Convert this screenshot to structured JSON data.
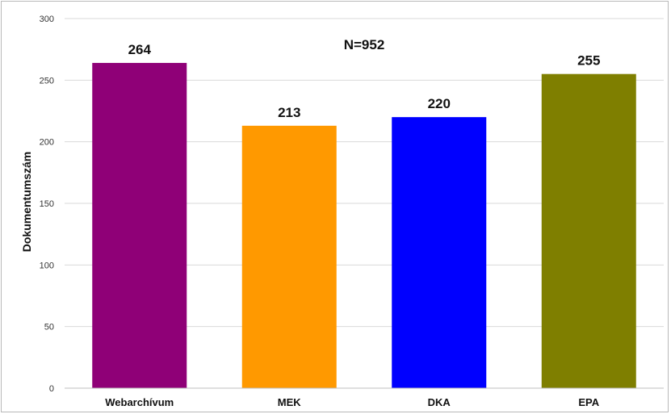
{
  "chart_data": {
    "type": "bar",
    "categories": [
      "Webarchívum",
      "MEK",
      "DKA",
      "EPA"
    ],
    "values": [
      264,
      213,
      220,
      255
    ],
    "value_labels": [
      "264",
      "213",
      "220",
      "255"
    ],
    "colors": [
      "#8f0077",
      "#ff9900",
      "#0000ff",
      "#7f7f00"
    ],
    "annotation": "N=952",
    "ylabel": "Dokumentumszám",
    "xlabel": "",
    "ylim": [
      0,
      300
    ],
    "yticks": [
      "0",
      "50",
      "100",
      "150",
      "200",
      "250",
      "300"
    ],
    "grid": true,
    "gridline_color": "#d9d9d9"
  }
}
